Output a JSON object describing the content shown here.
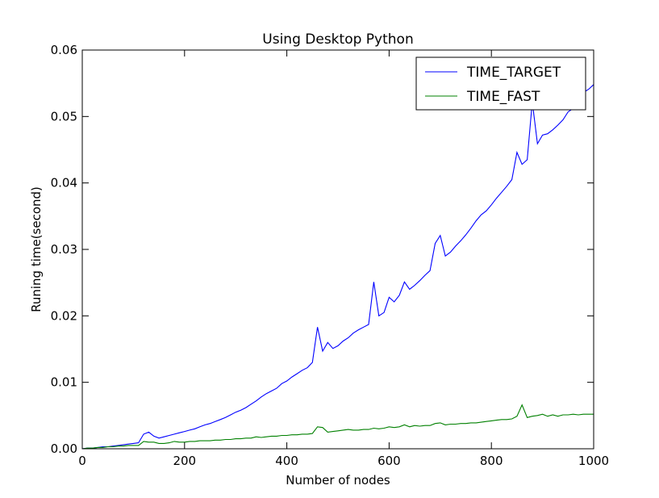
{
  "chart_data": {
    "type": "line",
    "title": "Using Desktop Python",
    "xlabel": "Number of nodes",
    "ylabel": "Runing time(second)",
    "xlim": [
      0,
      1000
    ],
    "ylim": [
      0,
      0.06
    ],
    "xticks": [
      0,
      200,
      400,
      600,
      800,
      1000
    ],
    "xtick_labels": [
      "0",
      "200",
      "400",
      "600",
      "800",
      "1000"
    ],
    "yticks": [
      0,
      0.01,
      0.02,
      0.03,
      0.04,
      0.05,
      0.06
    ],
    "ytick_labels": [
      "0.00",
      "0.01",
      "0.02",
      "0.03",
      "0.04",
      "0.05",
      "0.06"
    ],
    "grid": false,
    "legend_position": "top-right",
    "series": [
      {
        "name": "TIME_TARGET",
        "color": "#0000ff",
        "x": [
          0,
          10,
          20,
          30,
          40,
          50,
          60,
          70,
          80,
          90,
          100,
          110,
          120,
          130,
          140,
          150,
          160,
          170,
          180,
          190,
          200,
          210,
          220,
          230,
          240,
          250,
          260,
          270,
          280,
          290,
          300,
          310,
          320,
          330,
          340,
          350,
          360,
          370,
          380,
          390,
          400,
          410,
          420,
          430,
          440,
          450,
          460,
          470,
          480,
          490,
          500,
          510,
          520,
          530,
          540,
          550,
          560,
          570,
          580,
          590,
          600,
          610,
          620,
          630,
          640,
          650,
          660,
          670,
          680,
          690,
          700,
          710,
          720,
          730,
          740,
          750,
          760,
          770,
          780,
          790,
          800,
          810,
          820,
          830,
          840,
          850,
          860,
          870,
          880,
          890,
          900,
          910,
          920,
          930,
          940,
          950,
          960,
          970,
          980,
          990,
          1000
        ],
        "y": [
          0.0,
          0.0001,
          0.0001,
          0.0002,
          0.0003,
          0.0003,
          0.0004,
          0.0005,
          0.0006,
          0.0007,
          0.0008,
          0.0009,
          0.0022,
          0.0025,
          0.0019,
          0.0016,
          0.0018,
          0.002,
          0.0022,
          0.0024,
          0.0026,
          0.0028,
          0.003,
          0.0033,
          0.0036,
          0.0038,
          0.0041,
          0.0044,
          0.0047,
          0.0051,
          0.0055,
          0.0058,
          0.0062,
          0.0067,
          0.0072,
          0.0078,
          0.0083,
          0.0087,
          0.0091,
          0.0098,
          0.0102,
          0.0108,
          0.0113,
          0.0118,
          0.0122,
          0.013,
          0.0183,
          0.0147,
          0.016,
          0.0151,
          0.0155,
          0.0162,
          0.0167,
          0.0174,
          0.0179,
          0.0183,
          0.0187,
          0.0251,
          0.02,
          0.0205,
          0.0228,
          0.0221,
          0.0231,
          0.0251,
          0.024,
          0.0246,
          0.0253,
          0.0261,
          0.0268,
          0.0309,
          0.0321,
          0.029,
          0.0296,
          0.0305,
          0.0313,
          0.0322,
          0.0332,
          0.0343,
          0.0352,
          0.0358,
          0.0367,
          0.0377,
          0.0386,
          0.0395,
          0.0405,
          0.0446,
          0.0428,
          0.0435,
          0.0522,
          0.0459,
          0.0472,
          0.0474,
          0.048,
          0.0487,
          0.0495,
          0.0507,
          0.0512,
          0.0525,
          0.0536,
          0.0541,
          0.0548
        ]
      },
      {
        "name": "TIME_FAST",
        "color": "#008000",
        "x": [
          0,
          10,
          20,
          30,
          40,
          50,
          60,
          70,
          80,
          90,
          100,
          110,
          120,
          130,
          140,
          150,
          160,
          170,
          180,
          190,
          200,
          210,
          220,
          230,
          240,
          250,
          260,
          270,
          280,
          290,
          300,
          310,
          320,
          330,
          340,
          350,
          360,
          370,
          380,
          390,
          400,
          410,
          420,
          430,
          440,
          450,
          460,
          470,
          480,
          490,
          500,
          510,
          520,
          530,
          540,
          550,
          560,
          570,
          580,
          590,
          600,
          610,
          620,
          630,
          640,
          650,
          660,
          670,
          680,
          690,
          700,
          710,
          720,
          730,
          740,
          750,
          760,
          770,
          780,
          790,
          800,
          810,
          820,
          830,
          840,
          850,
          860,
          870,
          880,
          890,
          900,
          910,
          920,
          930,
          940,
          950,
          960,
          970,
          980,
          990,
          1000
        ],
        "y": [
          0.0,
          0.0001,
          0.0001,
          0.0002,
          0.0002,
          0.0003,
          0.0003,
          0.0004,
          0.0004,
          0.0005,
          0.0005,
          0.0005,
          0.0011,
          0.001,
          0.001,
          0.0008,
          0.0008,
          0.0009,
          0.0011,
          0.001,
          0.001,
          0.0011,
          0.0011,
          0.0012,
          0.0012,
          0.0012,
          0.0013,
          0.0013,
          0.0014,
          0.0014,
          0.0015,
          0.0015,
          0.0016,
          0.0016,
          0.0018,
          0.0017,
          0.0018,
          0.0019,
          0.0019,
          0.002,
          0.002,
          0.0021,
          0.0021,
          0.0022,
          0.0022,
          0.0023,
          0.0033,
          0.0032,
          0.0025,
          0.0026,
          0.0027,
          0.0028,
          0.0029,
          0.0028,
          0.0028,
          0.0029,
          0.0029,
          0.0031,
          0.003,
          0.0031,
          0.0033,
          0.0032,
          0.0033,
          0.0036,
          0.0033,
          0.0035,
          0.0034,
          0.0035,
          0.0035,
          0.0038,
          0.0039,
          0.0036,
          0.0037,
          0.0037,
          0.0038,
          0.0038,
          0.0039,
          0.0039,
          0.004,
          0.0041,
          0.0042,
          0.0043,
          0.0044,
          0.0044,
          0.0045,
          0.0049,
          0.0066,
          0.0047,
          0.0049,
          0.005,
          0.0052,
          0.0049,
          0.0051,
          0.0049,
          0.0051,
          0.0051,
          0.0052,
          0.0051,
          0.0052,
          0.0052,
          0.0052
        ]
      }
    ]
  }
}
